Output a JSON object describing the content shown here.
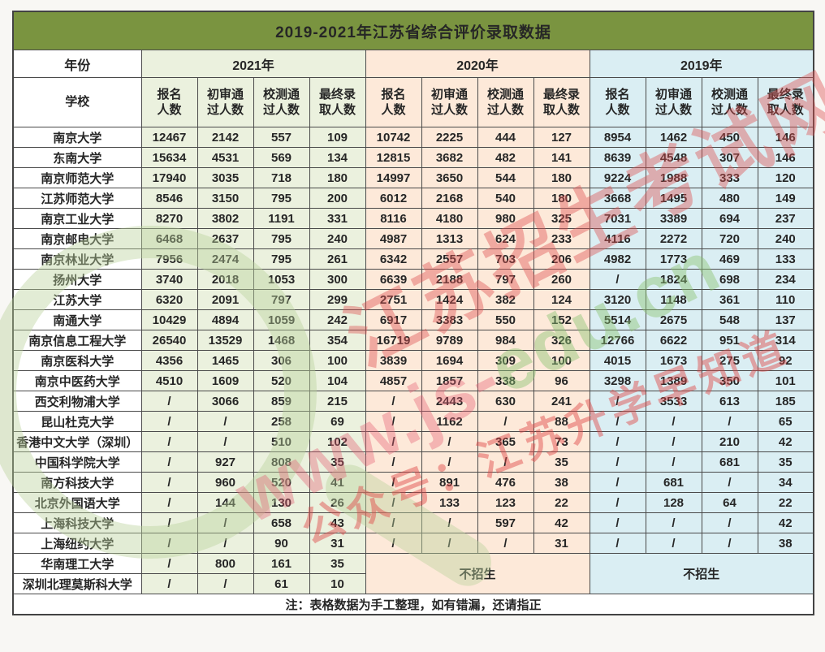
{
  "title": "2019-2021年江苏省综合评价录取数据",
  "header": {
    "year_label": "年份",
    "school_label": "学校",
    "years": [
      "2021年",
      "2020年",
      "2019年"
    ],
    "metrics": [
      "报名\n人数",
      "初审通\n过人数",
      "校测通\n过人数",
      "最终录\n取人数"
    ]
  },
  "rows": [
    {
      "school": "南京大学",
      "y2021": [
        "12467",
        "2142",
        "557",
        "109"
      ],
      "y2020": [
        "10742",
        "2225",
        "444",
        "127"
      ],
      "y2019": [
        "8954",
        "1462",
        "450",
        "146"
      ]
    },
    {
      "school": "东南大学",
      "y2021": [
        "15634",
        "4531",
        "569",
        "134"
      ],
      "y2020": [
        "12815",
        "3682",
        "482",
        "141"
      ],
      "y2019": [
        "8639",
        "4548",
        "307",
        "146"
      ]
    },
    {
      "school": "南京师范大学",
      "y2021": [
        "17940",
        "3035",
        "718",
        "180"
      ],
      "y2020": [
        "14997",
        "3650",
        "544",
        "180"
      ],
      "y2019": [
        "9224",
        "1988",
        "333",
        "120"
      ]
    },
    {
      "school": "江苏师范大学",
      "y2021": [
        "8546",
        "3150",
        "795",
        "200"
      ],
      "y2020": [
        "6012",
        "2168",
        "540",
        "180"
      ],
      "y2019": [
        "3668",
        "1495",
        "480",
        "149"
      ]
    },
    {
      "school": "南京工业大学",
      "y2021": [
        "8270",
        "3802",
        "1191",
        "331"
      ],
      "y2020": [
        "8116",
        "4180",
        "980",
        "325"
      ],
      "y2019": [
        "7031",
        "3389",
        "694",
        "237"
      ]
    },
    {
      "school": "南京邮电大学",
      "y2021": [
        "6468",
        "2637",
        "795",
        "240"
      ],
      "y2020": [
        "4987",
        "1313",
        "624",
        "233"
      ],
      "y2019": [
        "4116",
        "2272",
        "720",
        "240"
      ]
    },
    {
      "school": "南京林业大学",
      "y2021": [
        "7956",
        "2474",
        "795",
        "261"
      ],
      "y2020": [
        "6342",
        "2557",
        "703",
        "206"
      ],
      "y2019": [
        "4982",
        "1773",
        "469",
        "133"
      ]
    },
    {
      "school": "扬州大学",
      "y2021": [
        "3740",
        "2018",
        "1053",
        "300"
      ],
      "y2020": [
        "6639",
        "2188",
        "797",
        "260"
      ],
      "y2019": [
        "/",
        "1824",
        "698",
        "234"
      ]
    },
    {
      "school": "江苏大学",
      "y2021": [
        "6320",
        "2091",
        "797",
        "299"
      ],
      "y2020": [
        "2751",
        "1424",
        "382",
        "124"
      ],
      "y2019": [
        "3120",
        "1148",
        "361",
        "110"
      ]
    },
    {
      "school": "南通大学",
      "y2021": [
        "10429",
        "4894",
        "1059",
        "242"
      ],
      "y2020": [
        "6917",
        "3383",
        "550",
        "152"
      ],
      "y2019": [
        "5514",
        "2675",
        "548",
        "137"
      ]
    },
    {
      "school": "南京信息工程大学",
      "y2021": [
        "26540",
        "13529",
        "1468",
        "354"
      ],
      "y2020": [
        "16719",
        "9789",
        "984",
        "326"
      ],
      "y2019": [
        "12766",
        "6622",
        "951",
        "314"
      ]
    },
    {
      "school": "南京医科大学",
      "y2021": [
        "4356",
        "1465",
        "306",
        "100"
      ],
      "y2020": [
        "3839",
        "1694",
        "309",
        "100"
      ],
      "y2019": [
        "4015",
        "1673",
        "275",
        "92"
      ]
    },
    {
      "school": "南京中医药大学",
      "y2021": [
        "4510",
        "1609",
        "520",
        "104"
      ],
      "y2020": [
        "4857",
        "1857",
        "338",
        "96"
      ],
      "y2019": [
        "3298",
        "1389",
        "350",
        "101"
      ]
    },
    {
      "school": "西交利物浦大学",
      "y2021": [
        "/",
        "3066",
        "859",
        "215"
      ],
      "y2020": [
        "/",
        "2443",
        "630",
        "241"
      ],
      "y2019": [
        "/",
        "3533",
        "613",
        "185"
      ]
    },
    {
      "school": "昆山杜克大学",
      "y2021": [
        "/",
        "/",
        "258",
        "69"
      ],
      "y2020": [
        "/",
        "1162",
        "/",
        "88"
      ],
      "y2019": [
        "/",
        "/",
        "/",
        "65"
      ]
    },
    {
      "school": "香港中文大学（深圳）",
      "y2021": [
        "/",
        "/",
        "510",
        "102"
      ],
      "y2020": [
        "/",
        "/",
        "365",
        "73"
      ],
      "y2019": [
        "/",
        "/",
        "210",
        "42"
      ]
    },
    {
      "school": "中国科学院大学",
      "y2021": [
        "/",
        "927",
        "808",
        "35"
      ],
      "y2020": [
        "/",
        "/",
        "/",
        "35"
      ],
      "y2019": [
        "/",
        "/",
        "681",
        "35"
      ]
    },
    {
      "school": "南方科技大学",
      "y2021": [
        "/",
        "960",
        "520",
        "41"
      ],
      "y2020": [
        "/",
        "891",
        "476",
        "38"
      ],
      "y2019": [
        "/",
        "681",
        "/",
        "34"
      ]
    },
    {
      "school": "北京外国语大学",
      "y2021": [
        "/",
        "144",
        "130",
        "26"
      ],
      "y2020": [
        "/",
        "133",
        "123",
        "22"
      ],
      "y2019": [
        "/",
        "128",
        "64",
        "22"
      ]
    },
    {
      "school": "上海科技大学",
      "y2021": [
        "/",
        "/",
        "658",
        "43"
      ],
      "y2020": [
        "/",
        "/",
        "597",
        "42"
      ],
      "y2019": [
        "/",
        "/",
        "/",
        "42"
      ]
    },
    {
      "school": "上海纽约大学",
      "y2021": [
        "/",
        "/",
        "90",
        "31"
      ],
      "y2020": [
        "/",
        "/",
        "/",
        "31"
      ],
      "y2019": [
        "/",
        "/",
        "/",
        "38"
      ]
    },
    {
      "school": "华南理工大学",
      "y2021": [
        "/",
        "800",
        "161",
        "35"
      ],
      "merged": "start"
    },
    {
      "school": "深圳北理莫斯科大学",
      "y2021": [
        "/",
        "/",
        "61",
        "10"
      ],
      "merged": "cont"
    }
  ],
  "no_enroll_label": "不招生",
  "note": "注：表格数据为手工整理，如有错漏，还请指正",
  "watermark": {
    "line1": "江苏招生考试网",
    "url_red": "www.js-",
    "url_green": "edu.cn",
    "line3": "公众号：江苏升学早知道"
  },
  "colors": {
    "title_bar": "#7a9440",
    "year_2021_tint": "#ebf1de",
    "year_2020_tint": "#fde9d9",
    "year_2019_tint": "#daeef3",
    "border": "#4a4a4a",
    "watermark_red": "#de5050",
    "watermark_green": "#8cc474"
  }
}
